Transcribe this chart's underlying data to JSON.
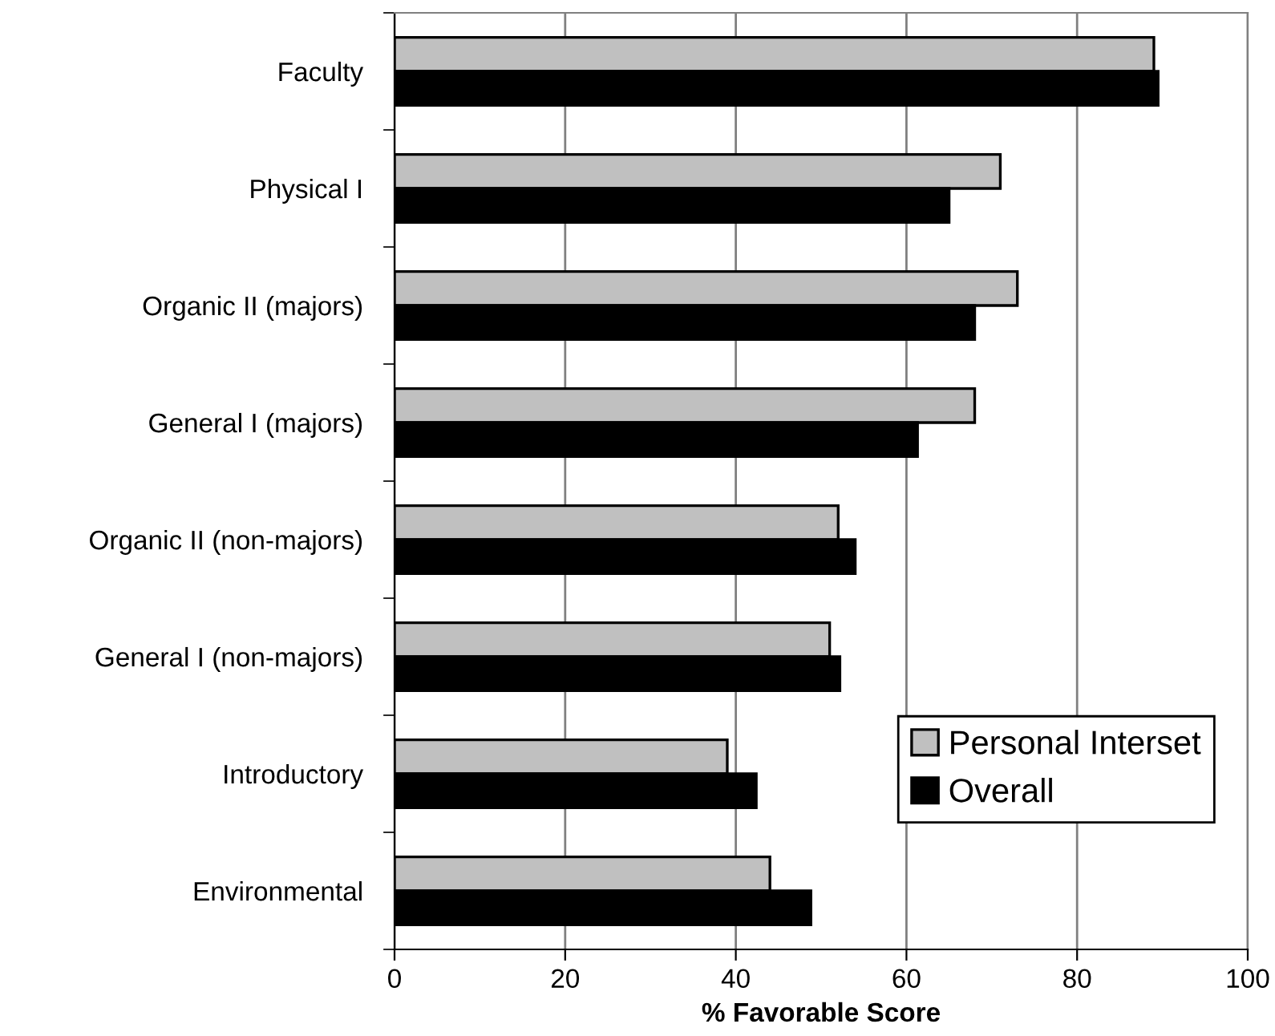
{
  "chart_data": {
    "type": "bar",
    "orientation": "horizontal",
    "xlabel": "% Favorable Score",
    "categories": [
      "Faculty",
      "Physical I",
      "Organic II (majors)",
      "General I (majors)",
      "Organic II (non-majors)",
      "General I (non-majors)",
      "Introductory",
      "Environmental"
    ],
    "series": [
      {
        "name": "Personal Interset",
        "color": "#c0c0c0",
        "values": [
          89,
          71,
          73,
          68,
          52,
          51,
          39,
          44
        ]
      },
      {
        "name": "Overall",
        "color": "#000000",
        "values": [
          89.5,
          65,
          68,
          61.3,
          54,
          52.2,
          42.4,
          48.8
        ]
      }
    ],
    "xlim": [
      0,
      100
    ],
    "xticks": [
      0,
      20,
      40,
      60,
      80,
      100
    ],
    "grid": "x",
    "legend": "bottom right"
  }
}
